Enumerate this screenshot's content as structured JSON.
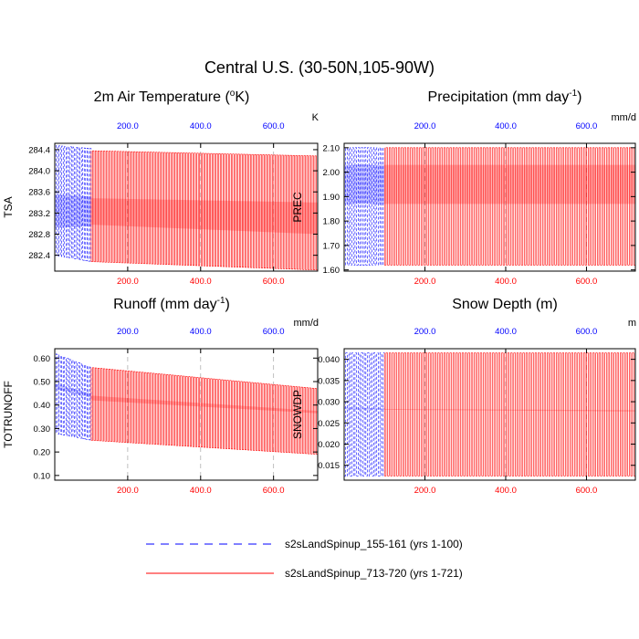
{
  "title": "Central U.S. (30-50N,105-90W)",
  "colors": {
    "series1": "#0000ff",
    "series2": "#ff0000",
    "axis": "#000000",
    "grid": "#b0b0b0",
    "background": "#ffffff"
  },
  "legend": [
    {
      "label": "s2sLandSpinup_155-161 (yrs 1-100)",
      "color": "#0000ff",
      "style": "dashed"
    },
    {
      "label": "s2sLandSpinup_713-720 (yrs 1-721)",
      "color": "#ff0000",
      "style": "solid"
    }
  ],
  "chart_data": [
    {
      "type": "line",
      "title": "2m Air Temperature (",
      "title_sup": "o",
      "title_tail": "K)",
      "unit": "K",
      "ylabel": "TSA",
      "xlim": [
        0,
        721
      ],
      "ylim": [
        282.1,
        284.52
      ],
      "yticks": [
        282.4,
        282.8,
        283.2,
        283.6,
        284.0,
        284.4
      ],
      "ytick_labels": [
        "282.4",
        "282.8",
        "283.2",
        "283.6",
        "284.0",
        "284.4"
      ],
      "top_axis_ticks": [
        200,
        400,
        600
      ],
      "top_axis_labels": [
        "200.0",
        "400.0",
        "600.0"
      ],
      "bottom_axis_ticks": [
        200,
        400,
        600
      ],
      "bottom_axis_labels": [
        "200.0",
        "400.0",
        "600.0"
      ],
      "show_bottom_labels": true,
      "series": [
        {
          "name": "s2sLandSpinup_155-161 (yrs 1-100)",
          "x_end": 100,
          "upper_start": 284.48,
          "upper_end": 284.42,
          "lower_start": 282.4,
          "lower_end": 282.28,
          "band_high": [
            283.55,
            283.52
          ],
          "band_low": [
            282.92,
            282.95
          ]
        },
        {
          "name": "s2sLandSpinup_713-720 (yrs 1-721)",
          "x_start": 100,
          "x_end": 721,
          "upper_start": 284.38,
          "upper_end": 284.28,
          "lower_start": 282.28,
          "lower_end": 282.12,
          "band_high": [
            283.48,
            283.4
          ],
          "band_low": [
            282.98,
            282.8
          ]
        }
      ]
    },
    {
      "type": "line",
      "title": "Precipitation (mm day",
      "title_sup": "-1",
      "title_tail": ")",
      "unit": "mm/d",
      "ylabel": "PREC",
      "xlim": [
        0,
        721
      ],
      "ylim": [
        1.595,
        2.118
      ],
      "yticks": [
        1.6,
        1.7,
        1.8,
        1.9,
        2.0,
        2.1
      ],
      "ytick_labels": [
        "1.60",
        "1.70",
        "1.80",
        "1.90",
        "2.00",
        "2.10"
      ],
      "top_axis_ticks": [
        200,
        400,
        600
      ],
      "top_axis_labels": [
        "200.0",
        "400.0",
        "600.0"
      ],
      "bottom_axis_ticks": [
        200,
        400,
        600
      ],
      "bottom_axis_labels": [
        "200.0",
        "400.0",
        "600.0"
      ],
      "show_bottom_labels": true,
      "series": [
        {
          "name": "s2sLandSpinup_155-161 (yrs 1-100)",
          "x_end": 100,
          "upper_start": 2.1,
          "upper_end": 2.1,
          "lower_start": 1.62,
          "lower_end": 1.62,
          "band_high": [
            2.03,
            2.03
          ],
          "band_low": [
            1.87,
            1.87
          ]
        },
        {
          "name": "s2sLandSpinup_713-720 (yrs 1-721)",
          "x_start": 100,
          "x_end": 721,
          "upper_start": 2.1,
          "upper_end": 2.1,
          "lower_start": 1.62,
          "lower_end": 1.62,
          "band_high": [
            2.03,
            2.03
          ],
          "band_low": [
            1.87,
            1.87
          ]
        }
      ]
    },
    {
      "type": "line",
      "title": "Runoff (mm day",
      "title_sup": "-1",
      "title_tail": ")",
      "unit": "mm/d",
      "ylabel": "TOTRUNOFF",
      "xlim": [
        0,
        721
      ],
      "ylim": [
        0.08,
        0.64
      ],
      "yticks": [
        0.1,
        0.2,
        0.3,
        0.4,
        0.5,
        0.6
      ],
      "ytick_labels": [
        "0.10",
        "0.20",
        "0.30",
        "0.40",
        "0.50",
        "0.60"
      ],
      "top_axis_ticks": [
        200,
        400,
        600
      ],
      "top_axis_labels": [
        "200.0",
        "400.0",
        "600.0"
      ],
      "bottom_axis_ticks": [
        200,
        400,
        600
      ],
      "bottom_axis_labels": [
        "200.0",
        "400.0",
        "600.0"
      ],
      "show_bottom_labels": true,
      "series": [
        {
          "name": "s2sLandSpinup_155-161 (yrs 1-100)",
          "x_end": 100,
          "upper_start": 0.62,
          "upper_end": 0.56,
          "lower_start": 0.28,
          "lower_end": 0.25,
          "band_high": [
            0.49,
            0.45
          ],
          "band_low": [
            0.47,
            0.43
          ]
        },
        {
          "name": "s2sLandSpinup_713-720 (yrs 1-721)",
          "x_start": 100,
          "x_end": 721,
          "upper_start": 0.56,
          "upper_end": 0.47,
          "lower_start": 0.25,
          "lower_end": 0.19,
          "band_high": [
            0.44,
            0.375
          ],
          "band_low": [
            0.42,
            0.365
          ]
        }
      ]
    },
    {
      "type": "line",
      "title": "Snow Depth (m)",
      "title_sup": "",
      "title_tail": "",
      "unit": "m",
      "ylabel": "SNOWDP",
      "xlim": [
        0,
        721
      ],
      "ylim": [
        0.0115,
        0.0425
      ],
      "yticks": [
        0.015,
        0.02,
        0.025,
        0.03,
        0.035,
        0.04
      ],
      "ytick_labels": [
        "0.015",
        "0.020",
        "0.025",
        "0.030",
        "0.035",
        "0.040"
      ],
      "top_axis_ticks": [
        200,
        400,
        600
      ],
      "top_axis_labels": [
        "200.0",
        "400.0",
        "600.0"
      ],
      "bottom_axis_ticks": [
        200,
        400,
        600
      ],
      "bottom_axis_labels": [
        "200.0",
        "400.0",
        "600.0"
      ],
      "show_bottom_labels": true,
      "series": [
        {
          "name": "s2sLandSpinup_155-161 (yrs 1-100)",
          "x_end": 100,
          "upper_start": 0.0415,
          "upper_end": 0.0415,
          "lower_start": 0.0125,
          "lower_end": 0.0125,
          "band_high": [
            0.0287,
            0.0285
          ],
          "band_low": [
            0.0282,
            0.0281
          ]
        },
        {
          "name": "s2sLandSpinup_713-720 (yrs 1-721)",
          "x_start": 100,
          "x_end": 721,
          "upper_start": 0.0415,
          "upper_end": 0.0415,
          "lower_start": 0.0125,
          "lower_end": 0.0125,
          "band_high": [
            0.0283,
            0.028
          ],
          "band_low": [
            0.0281,
            0.0277
          ]
        }
      ]
    }
  ]
}
